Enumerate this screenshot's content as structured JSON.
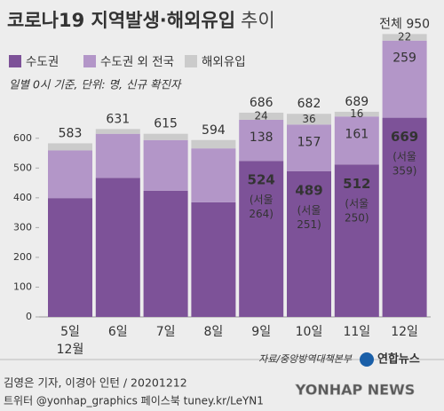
{
  "chart_data": {
    "type": "stacked_bar",
    "title": "코로나19 지역발생·해외유입",
    "title_suffix": "추이",
    "note": "일별 0시 기준, 단위: 명, 신규 확진자",
    "categories": [
      "5일",
      "6일",
      "7일",
      "8일",
      "9일",
      "10일",
      "11일",
      "12일"
    ],
    "month_label": "12월",
    "series": [
      {
        "name": "수도권",
        "color": "#7d5298",
        "values": [
          399,
          467,
          424,
          385,
          524,
          489,
          512,
          669
        ],
        "value_labels": [
          null,
          null,
          null,
          null,
          "524",
          "489",
          "512",
          "669"
        ]
      },
      {
        "name": "수도권 외 전국",
        "color": "#b396c8",
        "values": [
          160,
          148,
          170,
          181,
          138,
          157,
          161,
          259
        ],
        "value_labels": [
          null,
          null,
          null,
          null,
          "138",
          "157",
          "161",
          "259"
        ]
      },
      {
        "name": "해외유입",
        "color": "#cbcbcb",
        "values": [
          24,
          16,
          21,
          28,
          24,
          36,
          16,
          22
        ],
        "value_labels": [
          null,
          null,
          null,
          null,
          "24",
          "36",
          "16",
          "22"
        ]
      }
    ],
    "seoul": {
      "values": [
        null,
        null,
        null,
        null,
        264,
        251,
        250,
        359
      ],
      "value_labels": [
        null,
        null,
        null,
        null,
        "(서울\n264)",
        "(서울\n251)",
        "(서울\n250)",
        "(서울\n359)"
      ]
    },
    "totals": {
      "values": [
        583,
        631,
        615,
        594,
        686,
        682,
        689,
        950
      ],
      "value_labels": [
        null,
        null,
        null,
        null,
        null,
        null,
        null,
        "전체 950"
      ]
    },
    "ylim": [
      0,
      960
    ],
    "yticks": [
      0,
      100,
      200,
      300,
      400,
      500,
      600
    ],
    "source": "자료/중앙방역대책본부",
    "logo": "연합뉴스",
    "credit": "김영은 기자, 이경아 인턴 / 20201212",
    "social": "트위터 @yonhap_graphics  페이스북 tuney.kr/LeYN1",
    "watermark": "YONHAP NEWS"
  }
}
